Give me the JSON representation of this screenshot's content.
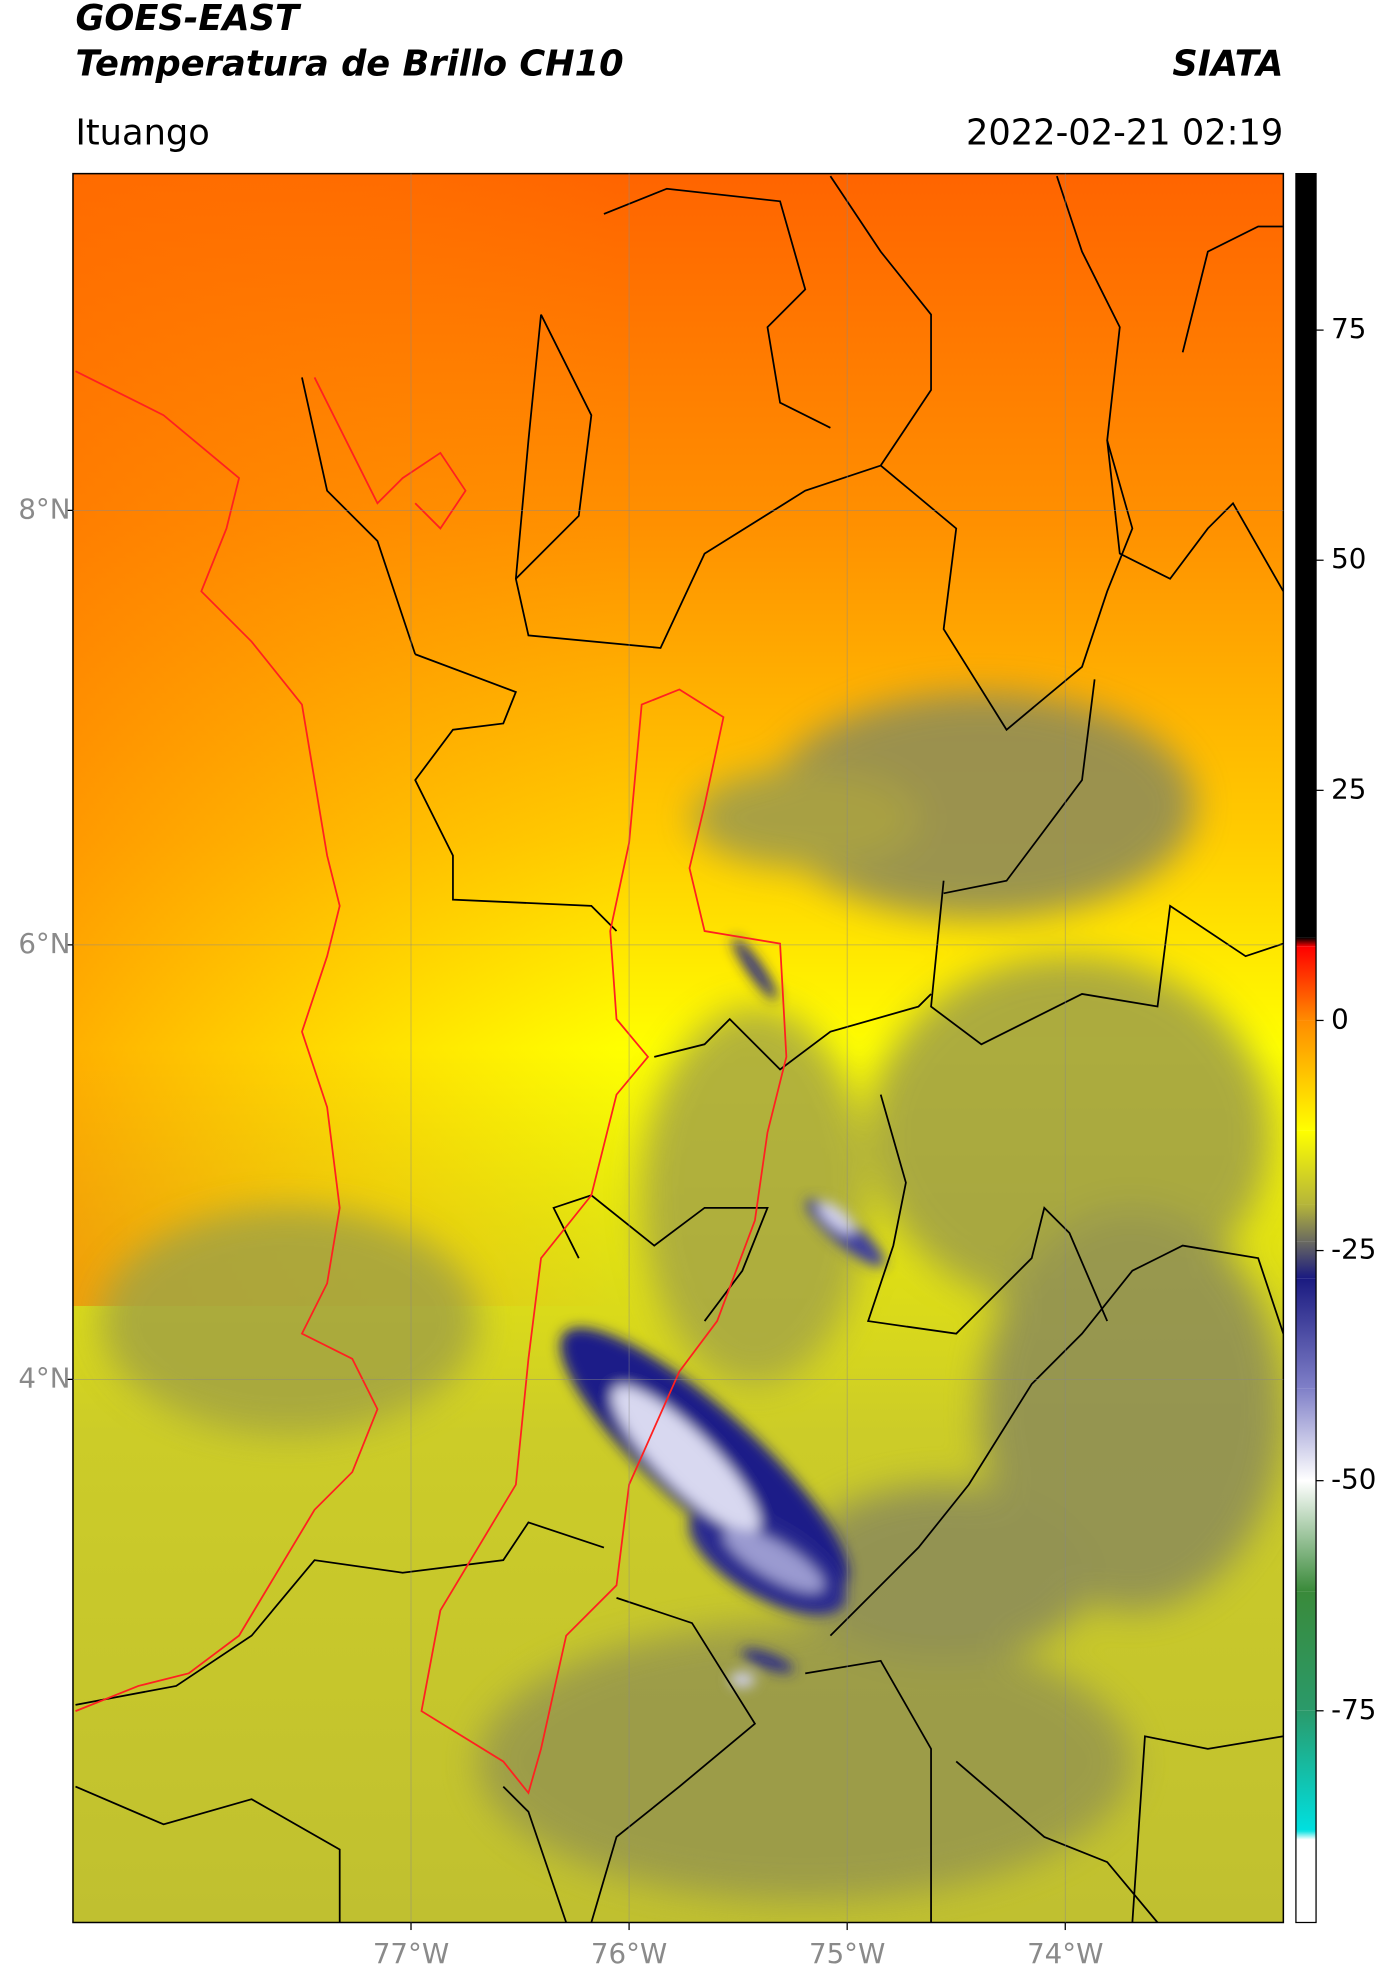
{
  "header": {
    "title": "GOES-EAST",
    "subtitle": "Temperatura de Brillo CH10",
    "brand": "SIATA",
    "place": "Ituango",
    "datetime": "2022-02-21 02:19"
  },
  "map": {
    "xlim": [
      -78.55,
      -73.0
    ],
    "ylim": [
      1.5,
      9.55
    ],
    "xticks": [
      {
        "value": -77,
        "label": "77°W"
      },
      {
        "value": -76,
        "label": "76°W"
      },
      {
        "value": -75,
        "label": "75°W"
      },
      {
        "value": -74,
        "label": "74°W"
      }
    ],
    "yticks": [
      {
        "value": 8,
        "label": "8°N"
      },
      {
        "value": 6,
        "label": "6°N"
      },
      {
        "value": 4,
        "label": "4°N"
      }
    ],
    "grid": true
  },
  "colorbar": {
    "lim": [
      -98,
      92
    ],
    "ticks": [
      75,
      50,
      25,
      0,
      -25,
      -50,
      -75
    ],
    "stops": [
      {
        "value": 92,
        "color": "#000000"
      },
      {
        "value": 9,
        "color": "#000000"
      },
      {
        "value": 8,
        "color": "#ff0000"
      },
      {
        "value": 0,
        "color": "#ff8c00"
      },
      {
        "value": -12,
        "color": "#ffff00"
      },
      {
        "value": -20,
        "color": "#b5b53a"
      },
      {
        "value": -24,
        "color": "#6a6a60"
      },
      {
        "value": -28,
        "color": "#1a1a80"
      },
      {
        "value": -40,
        "color": "#8080c8"
      },
      {
        "value": -50,
        "color": "#ffffff"
      },
      {
        "value": -62,
        "color": "#3a8a3a"
      },
      {
        "value": -75,
        "color": "#2a9a6a"
      },
      {
        "value": -88,
        "color": "#00e0e0"
      },
      {
        "value": -89,
        "color": "#ffffff"
      },
      {
        "value": -98,
        "color": "#ffffff"
      }
    ]
  }
}
